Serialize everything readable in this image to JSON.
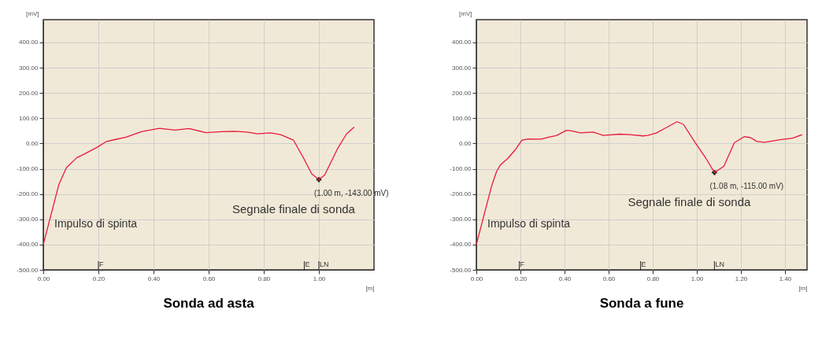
{
  "chart_data": [
    {
      "type": "line",
      "title": "Sonda ad asta",
      "xlabel": "[m]",
      "ylabel": "[mV]",
      "x": [
        0,
        0.056,
        0.084,
        0.122,
        0.15,
        0.197,
        0.229,
        0.262,
        0.3,
        0.356,
        0.421,
        0.478,
        0.529,
        0.59,
        0.646,
        0.693,
        0.74,
        0.777,
        0.824,
        0.861,
        0.908,
        0.946,
        0.974,
        1.0,
        1.021,
        1.067,
        1.1,
        1.128
      ],
      "series": [
        {
          "type": "scatter",
          "x": [
            1.0
          ],
          "values": [
            -143
          ],
          "color": "#222222",
          "marker": "cross"
        },
        {
          "color": "#e8193c",
          "values": [
            -400,
            -164,
            -95,
            -56,
            -41,
            -14,
            8,
            16,
            25,
            47,
            60,
            53,
            59,
            43,
            47,
            48,
            45,
            38,
            42,
            35,
            13,
            -61,
            -120,
            -143,
            -125,
            -22,
            37,
            65
          ]
        }
      ],
      "xlim": [
        0,
        1.2
      ],
      "ylim": [
        -500,
        490
      ],
      "grid": true,
      "xticks": [
        {
          "value": 0,
          "label": "0.00"
        },
        {
          "value": 0.2,
          "label": "0.20"
        },
        {
          "value": 0.4,
          "label": "0.40"
        },
        {
          "value": 0.6,
          "label": "0.60"
        },
        {
          "value": 0.8,
          "label": "0.80"
        },
        {
          "value": 1.0,
          "label": "1.00"
        }
      ],
      "yticks": [
        {
          "value": -500,
          "label": "-500.00"
        },
        {
          "value": -400,
          "label": "-400.00"
        },
        {
          "value": -300,
          "label": "-300.00"
        },
        {
          "value": -200,
          "label": "-200.00"
        },
        {
          "value": -100,
          "label": "-100.00"
        },
        {
          "value": 0,
          "label": "0.00"
        },
        {
          "value": 100,
          "label": "100.00"
        },
        {
          "value": 200,
          "label": "200.00"
        },
        {
          "value": 300,
          "label": "300.00"
        },
        {
          "value": 400,
          "label": "400.00"
        }
      ],
      "line_style": "solid",
      "marker": "none",
      "ref_lines": [
        {
          "axis": "x",
          "value": 0.2,
          "label": "F"
        },
        {
          "axis": "x",
          "value": 0.947,
          "label": "E"
        },
        {
          "axis": "x",
          "value": 1.0,
          "label": "LN"
        }
      ],
      "annotations": [
        {
          "text": "(1.00  m, -143.00  mV)",
          "x": 1.0,
          "y": -143
        },
        {
          "text": "Segnale finale di sonda",
          "x": 1.0,
          "y": -143
        },
        {
          "text": "Impulso di spinta",
          "x": 0,
          "y": -400
        }
      ]
    },
    {
      "type": "line",
      "title": "Sonda a fune",
      "xlabel": "[m]",
      "ylabel": "[mV]",
      "x": [
        0,
        0.069,
        0.092,
        0.109,
        0.144,
        0.179,
        0.207,
        0.236,
        0.294,
        0.328,
        0.363,
        0.409,
        0.432,
        0.472,
        0.53,
        0.576,
        0.651,
        0.697,
        0.755,
        0.778,
        0.818,
        0.858,
        0.91,
        0.939,
        0.997,
        1.043,
        1.08,
        1.123,
        1.17,
        1.215,
        1.244,
        1.273,
        1.308,
        1.377,
        1.434,
        1.478
      ],
      "series": [
        {
          "type": "scatter",
          "x": [
            1.08
          ],
          "values": [
            -115
          ],
          "color": "#222222",
          "marker": "cross"
        },
        {
          "color": "#e8193c",
          "values": [
            -400,
            -169,
            -110,
            -85,
            -58,
            -22,
            13,
            18,
            17,
            25,
            31,
            52,
            50,
            42,
            45,
            32,
            37,
            35,
            30,
            32,
            42,
            61,
            86,
            76,
            -2,
            -61,
            -115,
            -90,
            3,
            27,
            23,
            8,
            5,
            15,
            21,
            35
          ]
        }
      ],
      "xlim": [
        0,
        1.5
      ],
      "ylim": [
        -500,
        490
      ],
      "xticks": [
        {
          "value": 0,
          "label": "0.00"
        },
        {
          "value": 0.2,
          "label": "0.20"
        },
        {
          "value": 0.4,
          "label": "0.40"
        },
        {
          "value": 0.6,
          "label": "0.60"
        },
        {
          "value": 0.8,
          "label": "0.80"
        },
        {
          "value": 1.0,
          "label": "1.00"
        },
        {
          "value": 1.2,
          "label": "1.20"
        },
        {
          "value": 1.4,
          "label": "1.40"
        }
      ],
      "yticks": [
        {
          "value": -500,
          "label": "-500.00"
        },
        {
          "value": -400,
          "label": "-400.00"
        },
        {
          "value": -300,
          "label": "-300.00"
        },
        {
          "value": -200,
          "label": "-200.00"
        },
        {
          "value": -100,
          "label": "-100.00"
        },
        {
          "value": 0,
          "label": "0.00"
        },
        {
          "value": 100,
          "label": "100.00"
        },
        {
          "value": 200,
          "label": "200.00"
        },
        {
          "value": 300,
          "label": "300.00"
        },
        {
          "value": 400,
          "label": "400.00"
        }
      ],
      "grid": true,
      "line_style": "solid",
      "marker": "none",
      "ref_lines": [
        {
          "axis": "x",
          "value": 0.195,
          "label": "F"
        },
        {
          "axis": "x",
          "value": 0.745,
          "label": "E"
        },
        {
          "axis": "x",
          "value": 1.08,
          "label": "LN"
        }
      ],
      "annotations": [
        {
          "text": "(1.08  m, -115.00  mV)",
          "x": 1.08,
          "y": -115
        },
        {
          "text": "Segnale finale di sonda",
          "x": 1.08,
          "y": -115
        },
        {
          "text": "Impulso di spinta",
          "x": 0,
          "y": -400
        }
      ]
    }
  ]
}
